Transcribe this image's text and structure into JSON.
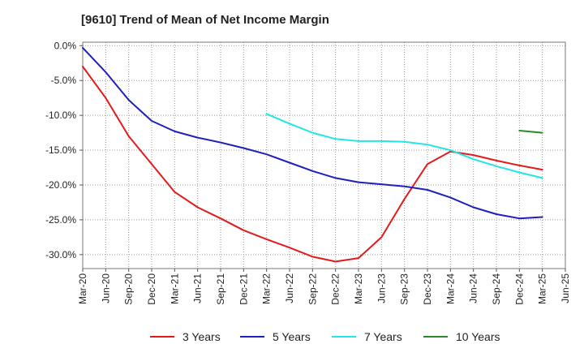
{
  "chart_data": {
    "type": "line",
    "title": "[9610]  Trend of Mean of Net Income Margin",
    "xlabel": "",
    "ylabel": "",
    "ylim": [
      -32,
      0.5
    ],
    "y_ticks": [
      0,
      -5,
      -10,
      -15,
      -20,
      -25,
      -30
    ],
    "y_tick_labels": [
      "0.0%",
      "-5.0%",
      "-10.0%",
      "-15.0%",
      "-20.0%",
      "-25.0%",
      "-30.0%"
    ],
    "x_ticks": [
      "Mar-20",
      "Jun-20",
      "Sep-20",
      "Dec-20",
      "Mar-21",
      "Jun-21",
      "Sep-21",
      "Dec-21",
      "Mar-22",
      "Jun-22",
      "Sep-22",
      "Dec-22",
      "Mar-23",
      "Jun-23",
      "Sep-23",
      "Dec-23",
      "Mar-24",
      "Jun-24",
      "Sep-24",
      "Dec-24",
      "Mar-25",
      "Jun-25"
    ],
    "grid": true,
    "legend_position": "bottom",
    "series": [
      {
        "name": "3 Years",
        "color": "#e31a1c",
        "points": [
          [
            "Mar-20",
            -3.0
          ],
          [
            "Jun-20",
            -7.5
          ],
          [
            "Sep-20",
            -13.0
          ],
          [
            "Dec-20",
            -17.0
          ],
          [
            "Mar-21",
            -21.0
          ],
          [
            "Jun-21",
            -23.2
          ],
          [
            "Sep-21",
            -24.8
          ],
          [
            "Dec-21",
            -26.5
          ],
          [
            "Mar-22",
            -27.8
          ],
          [
            "Jun-22",
            -29.0
          ],
          [
            "Sep-22",
            -30.3
          ],
          [
            "Dec-22",
            -31.0
          ],
          [
            "Mar-23",
            -30.5
          ],
          [
            "Jun-23",
            -27.5
          ],
          [
            "Sep-23",
            -22.0
          ],
          [
            "Dec-23",
            -17.0
          ],
          [
            "Mar-24",
            -15.2
          ],
          [
            "Jun-24",
            -15.7
          ],
          [
            "Sep-24",
            -16.5
          ],
          [
            "Dec-24",
            -17.2
          ],
          [
            "Mar-25",
            -17.8
          ]
        ]
      },
      {
        "name": "5 Years",
        "color": "#1f1fbf",
        "points": [
          [
            "Mar-20",
            -0.3
          ],
          [
            "Jun-20",
            -3.8
          ],
          [
            "Sep-20",
            -7.8
          ],
          [
            "Dec-20",
            -10.8
          ],
          [
            "Mar-21",
            -12.3
          ],
          [
            "Jun-21",
            -13.2
          ],
          [
            "Sep-21",
            -13.9
          ],
          [
            "Dec-21",
            -14.7
          ],
          [
            "Mar-22",
            -15.6
          ],
          [
            "Jun-22",
            -16.8
          ],
          [
            "Sep-22",
            -18.0
          ],
          [
            "Dec-22",
            -19.0
          ],
          [
            "Mar-23",
            -19.6
          ],
          [
            "Jun-23",
            -19.9
          ],
          [
            "Sep-23",
            -20.2
          ],
          [
            "Dec-23",
            -20.7
          ],
          [
            "Mar-24",
            -21.8
          ],
          [
            "Jun-24",
            -23.2
          ],
          [
            "Sep-24",
            -24.2
          ],
          [
            "Dec-24",
            -24.8
          ],
          [
            "Mar-25",
            -24.6
          ]
        ]
      },
      {
        "name": "7 Years",
        "color": "#22e5e5",
        "points": [
          [
            "Mar-22",
            -9.8
          ],
          [
            "Jun-22",
            -11.2
          ],
          [
            "Sep-22",
            -12.5
          ],
          [
            "Dec-22",
            -13.4
          ],
          [
            "Mar-23",
            -13.7
          ],
          [
            "Jun-23",
            -13.7
          ],
          [
            "Sep-23",
            -13.8
          ],
          [
            "Dec-23",
            -14.2
          ],
          [
            "Mar-24",
            -15.0
          ],
          [
            "Jun-24",
            -16.3
          ],
          [
            "Sep-24",
            -17.3
          ],
          [
            "Dec-24",
            -18.2
          ],
          [
            "Mar-25",
            -19.0
          ]
        ]
      },
      {
        "name": "10 Years",
        "color": "#2a8a2a",
        "points": [
          [
            "Dec-24",
            -12.2
          ],
          [
            "Mar-25",
            -12.5
          ]
        ]
      }
    ]
  }
}
